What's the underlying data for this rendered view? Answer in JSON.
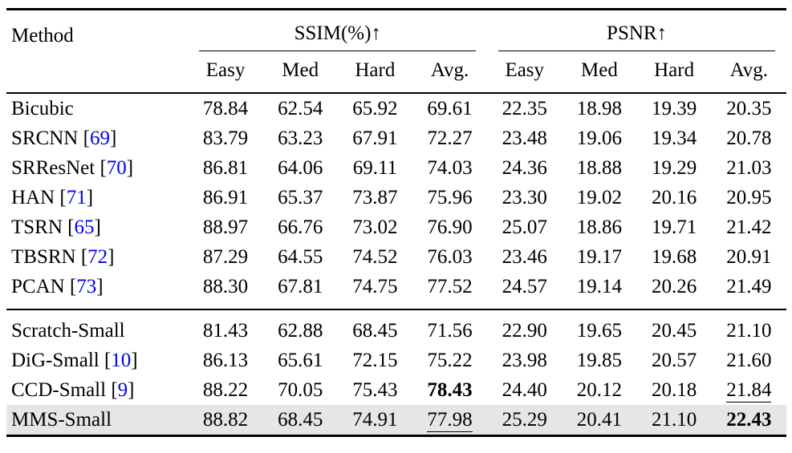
{
  "colors": {
    "citation": "#0000ee",
    "highlight_row": "#e6e6e6",
    "rule": "#000000"
  },
  "table": {
    "header": {
      "method_label": "Method",
      "groups": [
        {
          "label": "SSIM(%)↑",
          "subcols": [
            "Easy",
            "Med",
            "Hard",
            "Avg."
          ]
        },
        {
          "label": "PSNR↑",
          "subcols": [
            "Easy",
            "Med",
            "Hard",
            "Avg."
          ]
        }
      ]
    },
    "rows": [
      {
        "method": "Bicubic",
        "cite": null,
        "values": [
          "78.84",
          "62.54",
          "65.92",
          "69.61",
          "22.35",
          "18.98",
          "19.39",
          "20.35"
        ],
        "bold": [],
        "underline": [],
        "highlight": false,
        "section": 1
      },
      {
        "method": "SRCNN",
        "cite": "69",
        "values": [
          "83.79",
          "63.23",
          "67.91",
          "72.27",
          "23.48",
          "19.06",
          "19.34",
          "20.78"
        ],
        "bold": [],
        "underline": [],
        "highlight": false,
        "section": 1
      },
      {
        "method": "SRResNet",
        "cite": "70",
        "values": [
          "86.81",
          "64.06",
          "69.11",
          "74.03",
          "24.36",
          "18.88",
          "19.29",
          "21.03"
        ],
        "bold": [],
        "underline": [],
        "highlight": false,
        "section": 1
      },
      {
        "method": "HAN",
        "cite": "71",
        "values": [
          "86.91",
          "65.37",
          "73.87",
          "75.96",
          "23.30",
          "19.02",
          "20.16",
          "20.95"
        ],
        "bold": [],
        "underline": [],
        "highlight": false,
        "section": 1
      },
      {
        "method": "TSRN",
        "cite": "65",
        "values": [
          "88.97",
          "66.76",
          "73.02",
          "76.90",
          "25.07",
          "18.86",
          "19.71",
          "21.42"
        ],
        "bold": [],
        "underline": [],
        "highlight": false,
        "section": 1
      },
      {
        "method": "TBSRN",
        "cite": "72",
        "values": [
          "87.29",
          "64.55",
          "74.52",
          "76.03",
          "23.46",
          "19.17",
          "19.68",
          "20.91"
        ],
        "bold": [],
        "underline": [],
        "highlight": false,
        "section": 1
      },
      {
        "method": "PCAN",
        "cite": "73",
        "values": [
          "88.30",
          "67.81",
          "74.75",
          "77.52",
          "24.57",
          "19.14",
          "20.26",
          "21.49"
        ],
        "bold": [],
        "underline": [],
        "highlight": false,
        "section": 1
      },
      {
        "method": "Scratch-Small",
        "cite": null,
        "values": [
          "81.43",
          "62.88",
          "68.45",
          "71.56",
          "22.90",
          "19.65",
          "20.45",
          "21.10"
        ],
        "bold": [],
        "underline": [],
        "highlight": false,
        "section": 2
      },
      {
        "method": "DiG-Small",
        "cite": "10",
        "values": [
          "86.13",
          "65.61",
          "72.15",
          "75.22",
          "23.98",
          "19.85",
          "20.57",
          "21.60"
        ],
        "bold": [],
        "underline": [],
        "highlight": false,
        "section": 2
      },
      {
        "method": "CCD-Small",
        "cite": "9",
        "values": [
          "88.22",
          "70.05",
          "75.43",
          "78.43",
          "24.40",
          "20.12",
          "20.18",
          "21.84"
        ],
        "bold": [
          3
        ],
        "underline": [
          7
        ],
        "highlight": false,
        "section": 2
      },
      {
        "method": "MMS-Small",
        "cite": null,
        "values": [
          "88.82",
          "68.45",
          "74.91",
          "77.98",
          "25.29",
          "20.41",
          "21.10",
          "22.43"
        ],
        "bold": [
          7
        ],
        "underline": [
          3
        ],
        "highlight": true,
        "section": 2
      }
    ]
  }
}
